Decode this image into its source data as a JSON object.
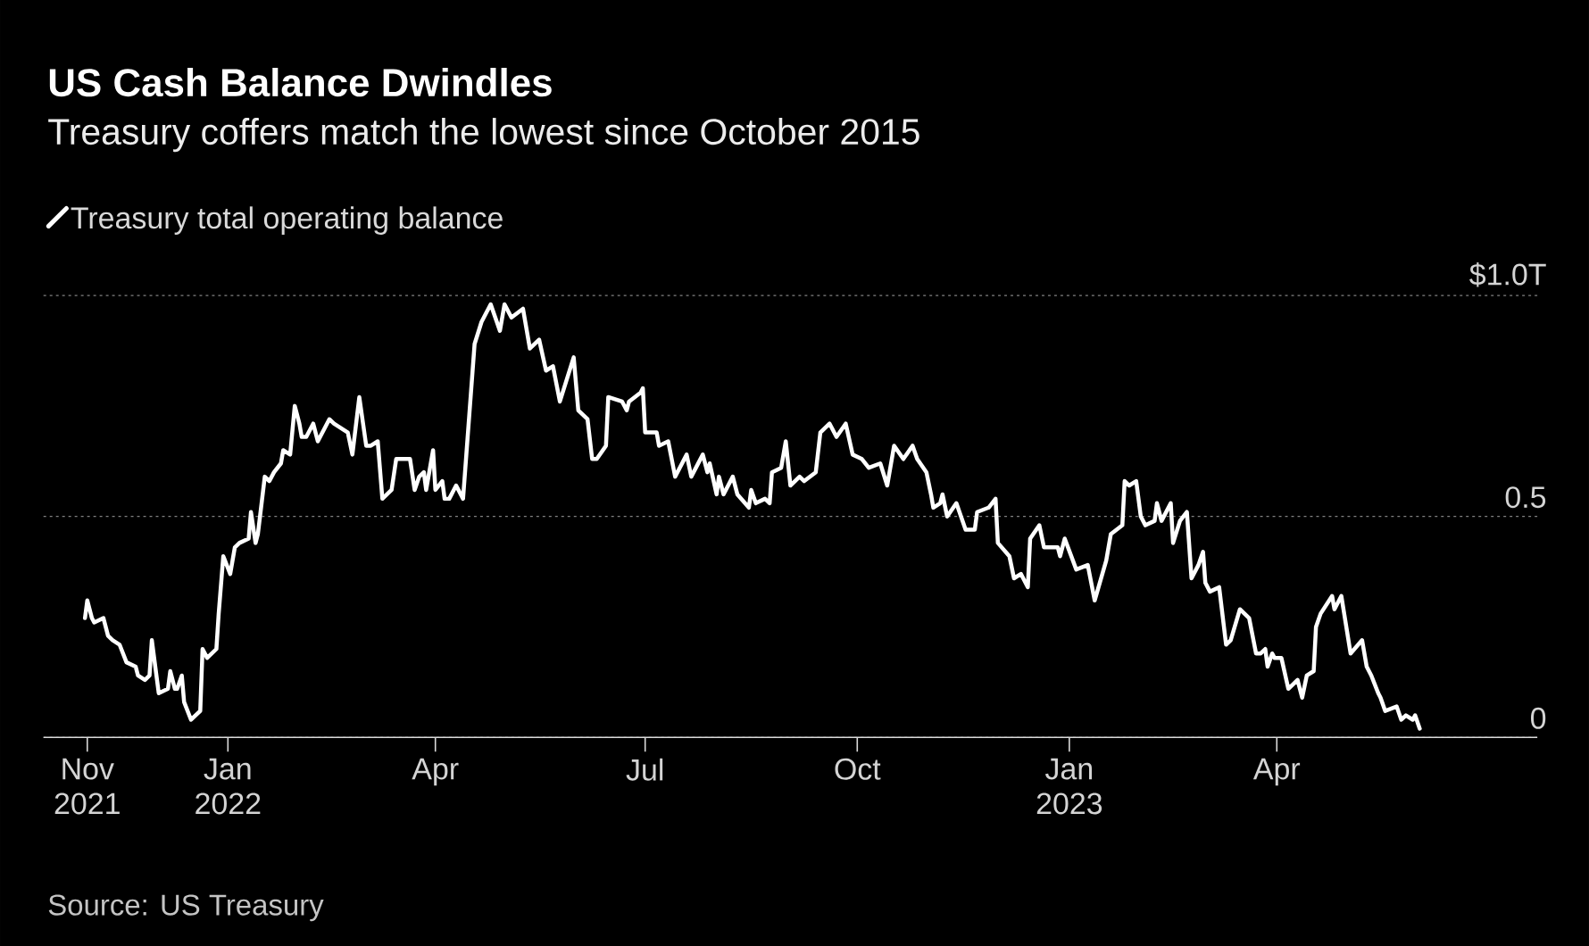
{
  "chart_data": {
    "type": "line",
    "title": "US Cash Balance Dwindles",
    "subtitle": "Treasury coffers match the lowest since October 2015",
    "x": [
      "2021-10-31",
      "2021-11-01",
      "2021-11-03",
      "2021-11-04",
      "2021-11-08",
      "2021-11-10",
      "2021-11-12",
      "2021-11-15",
      "2021-11-18",
      "2021-11-22",
      "2021-11-23",
      "2021-11-26",
      "2021-11-28",
      "2021-11-29",
      "2021-12-02",
      "2021-12-06",
      "2021-12-07",
      "2021-12-09",
      "2021-12-10",
      "2021-12-12",
      "2021-12-13",
      "2021-12-16",
      "2021-12-20",
      "2021-12-21",
      "2021-12-23",
      "2021-12-27",
      "2021-12-28",
      "2021-12-30",
      "2022-01-02",
      "2022-01-04",
      "2022-01-06",
      "2022-01-10",
      "2022-01-11",
      "2022-01-13",
      "2022-01-14",
      "2022-01-17",
      "2022-01-19",
      "2022-01-21",
      "2022-01-24",
      "2022-01-25",
      "2022-01-28",
      "2022-01-30",
      "2022-02-01",
      "2022-02-02",
      "2022-02-04",
      "2022-02-07",
      "2022-02-09",
      "2022-02-14",
      "2022-02-16",
      "2022-02-22",
      "2022-02-24",
      "2022-02-27",
      "2022-03-02",
      "2022-03-04",
      "2022-03-07",
      "2022-03-09",
      "2022-03-13",
      "2022-03-15",
      "2022-03-21",
      "2022-03-23",
      "2022-03-25",
      "2022-03-27",
      "2022-03-28",
      "2022-03-31",
      "2022-04-01",
      "2022-04-04",
      "2022-04-05",
      "2022-04-07",
      "2022-04-10",
      "2022-04-13",
      "2022-04-18",
      "2022-04-21",
      "2022-04-25",
      "2022-04-29",
      "2022-05-01",
      "2022-05-04",
      "2022-05-09",
      "2022-05-12",
      "2022-05-16",
      "2022-05-19",
      "2022-05-22",
      "2022-05-25",
      "2022-05-31",
      "2022-06-02",
      "2022-06-06",
      "2022-06-08",
      "2022-06-10",
      "2022-06-14",
      "2022-06-15",
      "2022-06-21",
      "2022-06-23",
      "2022-06-24",
      "2022-06-29",
      "2022-06-30",
      "2022-07-01",
      "2022-07-06",
      "2022-07-07",
      "2022-07-11",
      "2022-07-14",
      "2022-07-19",
      "2022-07-21",
      "2022-07-26",
      "2022-07-28",
      "2022-07-29",
      "2022-08-01",
      "2022-08-02",
      "2022-08-04",
      "2022-08-08",
      "2022-08-10",
      "2022-08-15",
      "2022-08-16",
      "2022-08-18",
      "2022-08-22",
      "2022-08-24",
      "2022-08-25",
      "2022-08-29",
      "2022-08-31",
      "2022-09-02",
      "2022-09-06",
      "2022-09-08",
      "2022-09-13",
      "2022-09-15",
      "2022-09-19",
      "2022-09-22",
      "2022-09-26",
      "2022-09-29",
      "2022-10-03",
      "2022-10-06",
      "2022-10-11",
      "2022-10-14",
      "2022-10-17",
      "2022-10-21",
      "2022-10-25",
      "2022-10-27",
      "2022-10-31",
      "2022-11-02",
      "2022-11-03",
      "2022-11-06",
      "2022-11-07",
      "2022-11-09",
      "2022-11-13",
      "2022-11-17",
      "2022-11-21",
      "2022-11-22",
      "2022-11-27",
      "2022-11-30",
      "2022-12-01",
      "2022-12-06",
      "2022-12-08",
      "2022-12-11",
      "2022-12-14",
      "2022-12-15",
      "2022-12-19",
      "2022-12-21",
      "2022-12-27",
      "2022-12-28",
      "2022-12-30",
      "2023-01-04",
      "2023-01-09",
      "2023-01-12",
      "2023-01-17",
      "2023-01-19",
      "2023-01-24",
      "2023-01-25",
      "2023-01-27",
      "2023-01-30",
      "2023-02-01",
      "2023-02-03",
      "2023-02-07",
      "2023-02-08",
      "2023-02-10",
      "2023-02-14",
      "2023-02-15",
      "2023-02-18",
      "2023-02-21",
      "2023-02-23",
      "2023-02-26",
      "2023-02-28",
      "2023-03-01",
      "2023-03-03",
      "2023-03-07",
      "2023-03-10",
      "2023-03-12",
      "2023-03-16",
      "2023-03-20",
      "2023-03-23",
      "2023-03-25",
      "2023-03-27",
      "2023-03-28",
      "2023-03-30",
      "2023-03-31",
      "2023-04-03",
      "2023-04-06",
      "2023-04-10",
      "2023-04-12",
      "2023-04-14",
      "2023-04-17",
      "2023-04-18",
      "2023-04-20",
      "2023-04-25",
      "2023-04-26",
      "2023-04-29",
      "2023-05-03",
      "2023-05-08",
      "2023-05-10",
      "2023-05-12",
      "2023-05-15",
      "2023-05-16",
      "2023-05-18",
      "2023-05-23",
      "2023-05-25",
      "2023-05-27",
      "2023-05-30",
      "2023-05-31",
      "2023-06-02"
    ],
    "series": [
      {
        "name": "Treasury total operating balance",
        "color": "#ffffff",
        "values": [
          0.27,
          0.31,
          0.27,
          0.26,
          0.27,
          0.23,
          0.22,
          0.21,
          0.17,
          0.16,
          0.14,
          0.13,
          0.14,
          0.22,
          0.1,
          0.11,
          0.15,
          0.11,
          0.11,
          0.14,
          0.08,
          0.04,
          0.06,
          0.2,
          0.18,
          0.2,
          0.28,
          0.41,
          0.37,
          0.43,
          0.44,
          0.45,
          0.51,
          0.44,
          0.46,
          0.59,
          0.58,
          0.6,
          0.62,
          0.65,
          0.64,
          0.75,
          0.71,
          0.68,
          0.68,
          0.71,
          0.67,
          0.72,
          0.71,
          0.69,
          0.64,
          0.77,
          0.66,
          0.66,
          0.67,
          0.54,
          0.56,
          0.63,
          0.63,
          0.56,
          0.59,
          0.6,
          0.56,
          0.65,
          0.56,
          0.58,
          0.54,
          0.54,
          0.57,
          0.54,
          0.89,
          0.94,
          0.98,
          0.92,
          0.98,
          0.95,
          0.97,
          0.88,
          0.9,
          0.83,
          0.84,
          0.76,
          0.86,
          0.74,
          0.72,
          0.63,
          0.63,
          0.66,
          0.77,
          0.76,
          0.74,
          0.76,
          0.78,
          0.79,
          0.69,
          0.69,
          0.66,
          0.67,
          0.59,
          0.64,
          0.59,
          0.64,
          0.6,
          0.62,
          0.55,
          0.59,
          0.55,
          0.59,
          0.55,
          0.52,
          0.56,
          0.53,
          0.54,
          0.53,
          0.6,
          0.61,
          0.67,
          0.57,
          0.59,
          0.58,
          0.6,
          0.69,
          0.71,
          0.68,
          0.71,
          0.64,
          0.63,
          0.61,
          0.62,
          0.57,
          0.66,
          0.63,
          0.66,
          0.63,
          0.6,
          0.55,
          0.52,
          0.53,
          0.55,
          0.5,
          0.53,
          0.47,
          0.47,
          0.51,
          0.52,
          0.54,
          0.44,
          0.41,
          0.36,
          0.37,
          0.34,
          0.45,
          0.48,
          0.43,
          0.43,
          0.41,
          0.45,
          0.38,
          0.39,
          0.31,
          0.4,
          0.46,
          0.48,
          0.58,
          0.57,
          0.58,
          0.5,
          0.48,
          0.49,
          0.53,
          0.49,
          0.53,
          0.44,
          0.49,
          0.51,
          0.36,
          0.39,
          0.42,
          0.35,
          0.33,
          0.34,
          0.21,
          0.22,
          0.29,
          0.27,
          0.19,
          0.19,
          0.2,
          0.16,
          0.19,
          0.18,
          0.18,
          0.11,
          0.13,
          0.09,
          0.14,
          0.15,
          0.25,
          0.28,
          0.32,
          0.29,
          0.32,
          0.19,
          0.22,
          0.16,
          0.14,
          0.1,
          0.09,
          0.06,
          0.07,
          0.04,
          0.05,
          0.04,
          0.05,
          0.02
        ]
      }
    ],
    "xlim": [
      "2021-10-13",
      "2023-07-23"
    ],
    "xticks": [
      {
        "value": "2021-11-01",
        "label": "Nov 2021"
      },
      {
        "value": "2022-01-01",
        "label": "Jan 2022"
      },
      {
        "value": "2022-04-01",
        "label": "Apr"
      },
      {
        "value": "2022-07-01",
        "label": "Jul"
      },
      {
        "value": "2022-10-01",
        "label": "Oct"
      },
      {
        "value": "2023-01-01",
        "label": "Jan 2023"
      },
      {
        "value": "2023-04-01",
        "label": "Apr"
      }
    ],
    "ylim": [
      0,
      1.0
    ],
    "yticks": [
      {
        "value": 1.0,
        "label": "$1.0T"
      },
      {
        "value": 0.5,
        "label": "0.5"
      },
      0
    ],
    "grid": "y",
    "legend": "top left",
    "annotations": [
      "Source: US Treasury"
    ]
  }
}
